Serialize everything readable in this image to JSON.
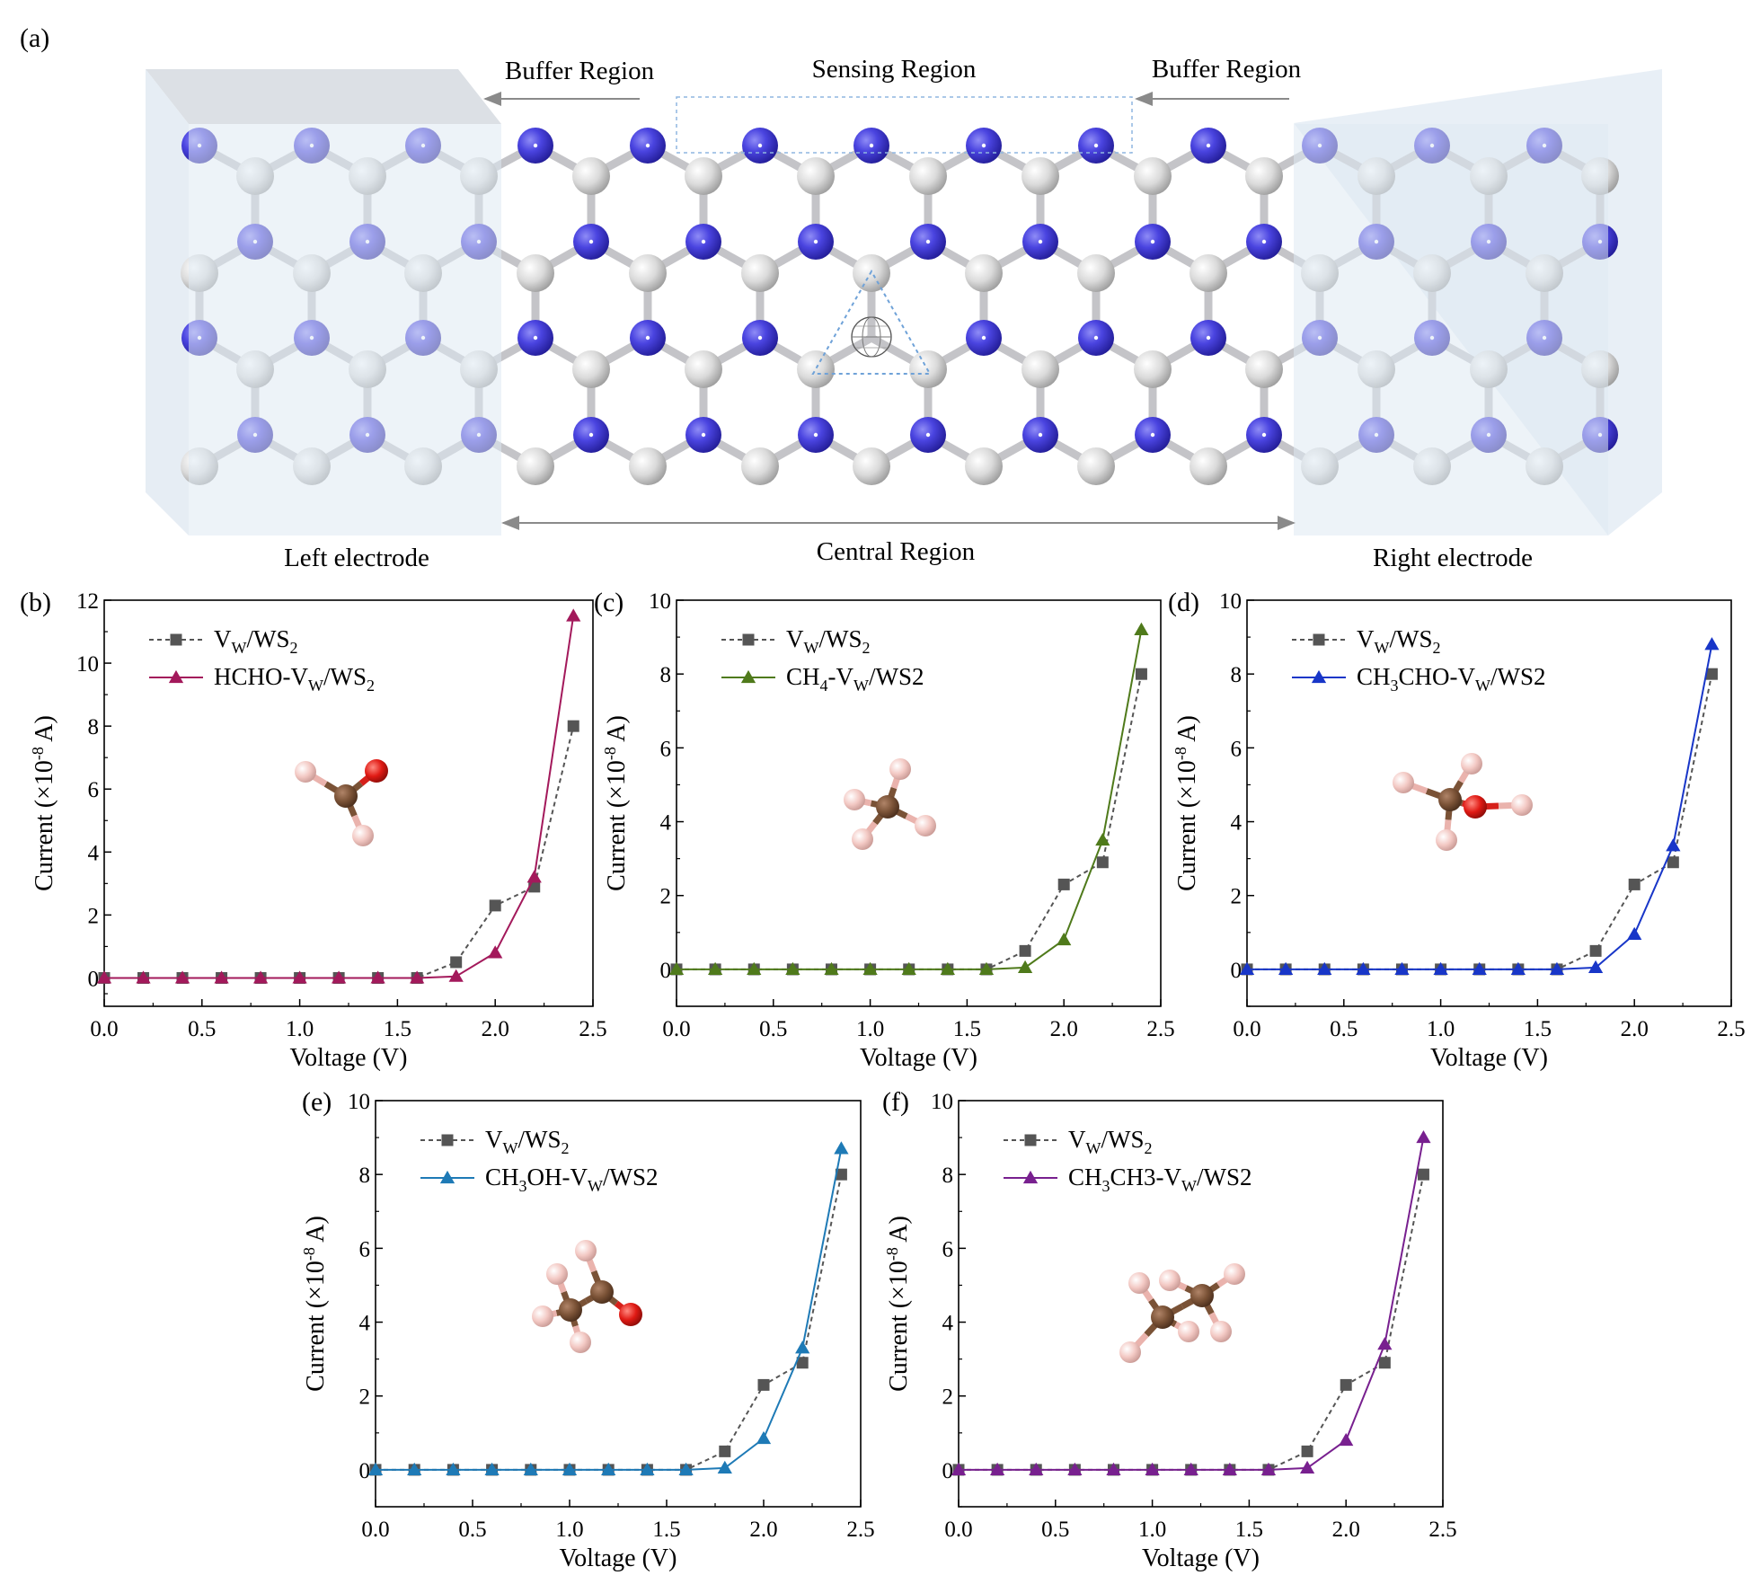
{
  "figure": {
    "panel_a": {
      "label": "(a)",
      "buffer_left": "Buffer Region",
      "sensing": "Sensing Region",
      "buffer_right": "Buffer Region",
      "left_electrode": "Left electrode",
      "central": "Central Region",
      "right_electrode": "Right electrode"
    },
    "colors": {
      "tungsten": "#4a44e0",
      "sulfur": "#dcdcdc",
      "bond": "#c4c4c8",
      "electrode_box": "#dfe9f3",
      "vacancy_marker": "#6fa2d8"
    },
    "icons": [
      "lattice-structure",
      "vacancy-marker",
      "molecule-ball-stick"
    ]
  },
  "chart_data": [
    {
      "type": "line",
      "panel": "(b)",
      "xlabel": "Voltage (V)",
      "ylabel_main": "Current (×10",
      "ylabel_exp": "-8",
      "ylabel_tail": " A)",
      "xlim": [
        0,
        2.5
      ],
      "ylim": [
        -0.9,
        12
      ],
      "xticks": [
        0.0,
        0.5,
        1.0,
        1.5,
        2.0,
        2.5
      ],
      "xtick_labels": [
        "0.0",
        "0.5",
        "1.0",
        "1.5",
        "2.0",
        "2.5"
      ],
      "yticks": [
        0,
        2,
        4,
        6,
        8,
        10,
        12
      ],
      "ytick_labels": [
        "0",
        "2",
        "4",
        "6",
        "8",
        "10",
        "12"
      ],
      "x": [
        0,
        0.2,
        0.4,
        0.6,
        0.8,
        1.0,
        1.2,
        1.4,
        1.6,
        1.8,
        2.0,
        2.2,
        2.4
      ],
      "series": [
        {
          "name": "VW/WS2",
          "legend": [
            "V",
            "W",
            "/WS",
            "2",
            ""
          ],
          "color": "#555555",
          "marker": "square",
          "dashed": true,
          "values": [
            0,
            0,
            0,
            0,
            0,
            0,
            0,
            0,
            0,
            0.5,
            2.3,
            2.9,
            8.0
          ]
        },
        {
          "name": "HCHO-VW/WS2",
          "legend": [
            "HCHO-V",
            "W",
            "/WS",
            "2",
            ""
          ],
          "color": "#a3195b",
          "marker": "triangle",
          "dashed": false,
          "values": [
            0,
            0,
            0,
            0,
            0,
            0,
            0,
            0,
            0,
            0.05,
            0.8,
            3.2,
            11.5
          ]
        }
      ],
      "molecule": "HCHO"
    },
    {
      "type": "line",
      "panel": "(c)",
      "xlabel": "Voltage (V)",
      "ylabel_main": "Current (×10",
      "ylabel_exp": "-8",
      "ylabel_tail": " A)",
      "xlim": [
        0,
        2.5
      ],
      "ylim": [
        -1.0,
        10
      ],
      "xticks": [
        0.0,
        0.5,
        1.0,
        1.5,
        2.0,
        2.5
      ],
      "xtick_labels": [
        "0.0",
        "0.5",
        "1.0",
        "1.5",
        "2.0",
        "2.5"
      ],
      "yticks": [
        0,
        2,
        4,
        6,
        8,
        10
      ],
      "ytick_labels": [
        "0",
        "2",
        "4",
        "6",
        "8",
        "10"
      ],
      "x": [
        0,
        0.2,
        0.4,
        0.6,
        0.8,
        1.0,
        1.2,
        1.4,
        1.6,
        1.8,
        2.0,
        2.2,
        2.4
      ],
      "series": [
        {
          "name": "VW/WS2",
          "legend": [
            "V",
            "W",
            "/WS",
            "2",
            ""
          ],
          "color": "#555555",
          "marker": "square",
          "dashed": true,
          "values": [
            0,
            0,
            0,
            0,
            0,
            0,
            0,
            0,
            0,
            0.5,
            2.3,
            2.9,
            8.0
          ]
        },
        {
          "name": "CH4-VW/WS2",
          "legend": [
            "CH",
            "4",
            "-V",
            "W",
            "/WS2"
          ],
          "color": "#4f7a1b",
          "marker": "triangle",
          "dashed": false,
          "values": [
            0,
            0,
            0,
            0,
            0,
            0,
            0,
            0,
            0,
            0.05,
            0.8,
            3.5,
            9.2
          ]
        }
      ],
      "molecule": "CH4"
    },
    {
      "type": "line",
      "panel": "(d)",
      "xlabel": "Voltage (V)",
      "ylabel_main": "Current (×10",
      "ylabel_exp": "-8",
      "ylabel_tail": " A)",
      "xlim": [
        0,
        2.5
      ],
      "ylim": [
        -1.0,
        10
      ],
      "xticks": [
        0.0,
        0.5,
        1.0,
        1.5,
        2.0,
        2.5
      ],
      "xtick_labels": [
        "0.0",
        "0.5",
        "1.0",
        "1.5",
        "2.0",
        "2.5"
      ],
      "yticks": [
        0,
        2,
        4,
        6,
        8,
        10
      ],
      "ytick_labels": [
        "0",
        "2",
        "4",
        "6",
        "8",
        "10"
      ],
      "x": [
        0,
        0.2,
        0.4,
        0.6,
        0.8,
        1.0,
        1.2,
        1.4,
        1.6,
        1.8,
        2.0,
        2.2,
        2.4
      ],
      "series": [
        {
          "name": "VW/WS2",
          "legend": [
            "V",
            "W",
            "/WS",
            "2",
            ""
          ],
          "color": "#555555",
          "marker": "square",
          "dashed": true,
          "values": [
            0,
            0,
            0,
            0,
            0,
            0,
            0,
            0,
            0,
            0.5,
            2.3,
            2.9,
            8.0
          ]
        },
        {
          "name": "CH3CHO-VW/WS2",
          "legend": [
            "CH",
            "3",
            "CHO-V",
            "W",
            "/WS2"
          ],
          "color": "#1836c8",
          "marker": "triangle",
          "dashed": false,
          "values": [
            0,
            0,
            0,
            0,
            0,
            0,
            0,
            0,
            0,
            0.05,
            0.95,
            3.35,
            8.8
          ]
        }
      ],
      "molecule": "CH3CHO"
    },
    {
      "type": "line",
      "panel": "(e)",
      "xlabel": "Voltage (V)",
      "ylabel_main": "Current (×10",
      "ylabel_exp": "-8",
      "ylabel_tail": " A)",
      "xlim": [
        0,
        2.5
      ],
      "ylim": [
        -1.0,
        10
      ],
      "xticks": [
        0.0,
        0.5,
        1.0,
        1.5,
        2.0,
        2.5
      ],
      "xtick_labels": [
        "0.0",
        "0.5",
        "1.0",
        "1.5",
        "2.0",
        "2.5"
      ],
      "yticks": [
        0,
        2,
        4,
        6,
        8,
        10
      ],
      "ytick_labels": [
        "0",
        "2",
        "4",
        "6",
        "8",
        "10"
      ],
      "x": [
        0,
        0.2,
        0.4,
        0.6,
        0.8,
        1.0,
        1.2,
        1.4,
        1.6,
        1.8,
        2.0,
        2.2,
        2.4
      ],
      "series": [
        {
          "name": "VW/WS2",
          "legend": [
            "V",
            "W",
            "/WS",
            "2",
            ""
          ],
          "color": "#555555",
          "marker": "square",
          "dashed": true,
          "values": [
            0,
            0,
            0,
            0,
            0,
            0,
            0,
            0,
            0,
            0.5,
            2.3,
            2.9,
            8.0
          ]
        },
        {
          "name": "CH3OH-VW/WS2",
          "legend": [
            "CH",
            "3",
            "OH-V",
            "W",
            "/WS2"
          ],
          "color": "#1e7ab6",
          "marker": "triangle",
          "dashed": false,
          "values": [
            0,
            0,
            0,
            0,
            0,
            0,
            0,
            0,
            0,
            0.05,
            0.85,
            3.3,
            8.7
          ]
        }
      ],
      "molecule": "CH3OH"
    },
    {
      "type": "line",
      "panel": "(f)",
      "xlabel": "Voltage (V)",
      "ylabel_main": "Current (×10",
      "ylabel_exp": "-8",
      "ylabel_tail": " A)",
      "xlim": [
        0,
        2.5
      ],
      "ylim": [
        -1.0,
        10
      ],
      "xticks": [
        0.0,
        0.5,
        1.0,
        1.5,
        2.0,
        2.5
      ],
      "xtick_labels": [
        "0.0",
        "0.5",
        "1.0",
        "1.5",
        "2.0",
        "2.5"
      ],
      "yticks": [
        0,
        2,
        4,
        6,
        8,
        10
      ],
      "ytick_labels": [
        "0",
        "2",
        "4",
        "6",
        "8",
        "10"
      ],
      "x": [
        0,
        0.2,
        0.4,
        0.6,
        0.8,
        1.0,
        1.2,
        1.4,
        1.6,
        1.8,
        2.0,
        2.2,
        2.4
      ],
      "series": [
        {
          "name": "VW/WS2",
          "legend": [
            "V",
            "W",
            "/WS",
            "2",
            ""
          ],
          "color": "#555555",
          "marker": "square",
          "dashed": true,
          "values": [
            0,
            0,
            0,
            0,
            0,
            0,
            0,
            0,
            0,
            0.5,
            2.3,
            2.9,
            8.0
          ]
        },
        {
          "name": "CH3CH3-VW/WS2",
          "legend": [
            "CH",
            "3",
            "CH3-V",
            "W",
            "/WS2"
          ],
          "color": "#78208f",
          "marker": "triangle",
          "dashed": false,
          "values": [
            0,
            0,
            0,
            0,
            0,
            0,
            0,
            0,
            0,
            0.05,
            0.8,
            3.4,
            9.0
          ]
        }
      ],
      "molecule": "CH3CH3"
    }
  ]
}
